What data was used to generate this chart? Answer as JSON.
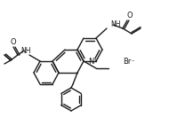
{
  "bg_color": "#ffffff",
  "line_color": "#1a1a1a",
  "line_width": 1.0,
  "figsize": [
    1.9,
    1.5
  ],
  "dpi": 100,
  "br_label": "Br⁻",
  "nplus_label": "N⁺",
  "nh_label": "NH",
  "o_label": "O"
}
